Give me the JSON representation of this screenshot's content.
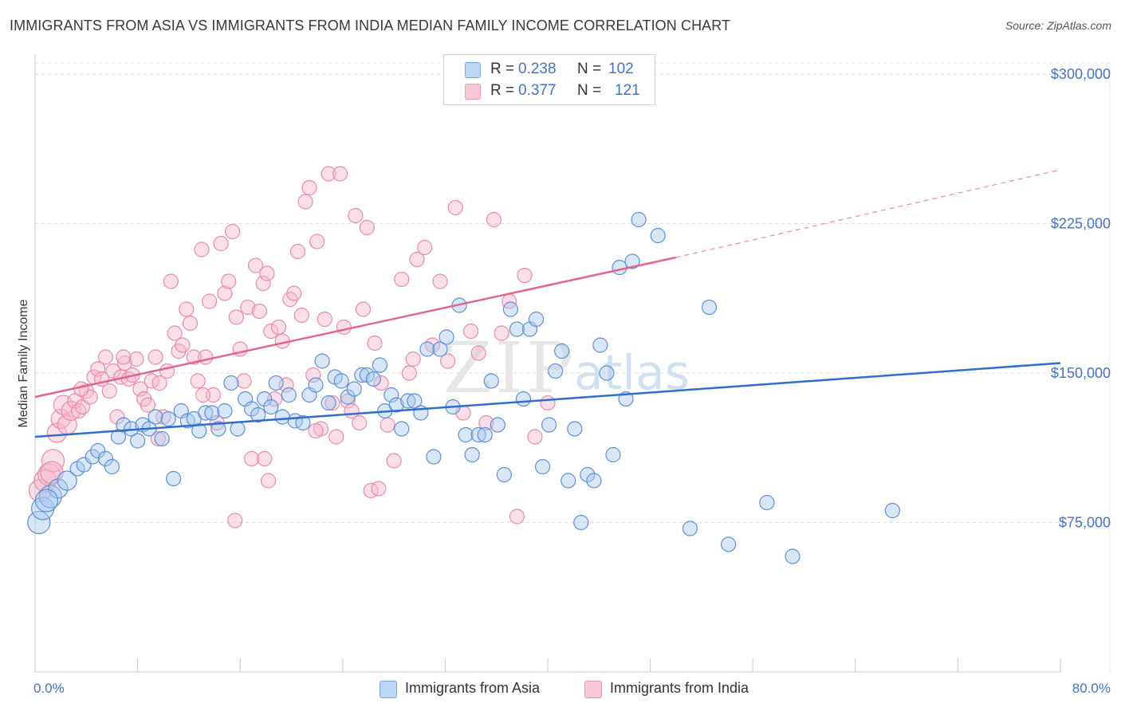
{
  "title": "IMMIGRANTS FROM ASIA VS IMMIGRANTS FROM INDIA MEDIAN FAMILY INCOME CORRELATION CHART",
  "source": "Source: ZipAtlas.com",
  "watermark": {
    "zip": "ZIP",
    "atlas": "atlas"
  },
  "legend": {
    "asia": {
      "r_label": "R =",
      "r_value": "0.238",
      "n_label": "N =",
      "n_value": "102"
    },
    "india": {
      "r_label": "R =",
      "r_value": "0.377",
      "n_label": "N =",
      "n_value": "121"
    }
  },
  "bottom_legend": {
    "asia": "Immigrants from Asia",
    "india": "Immigrants from India"
  },
  "colors": {
    "asia_fill": "#a8c8f0",
    "asia_stroke": "#5b8fd6",
    "asia_line": "#2f6fcc",
    "india_fill": "#f7b8cc",
    "india_stroke": "#e88aa8",
    "india_line": "#e0668f",
    "tick": "#4472c4",
    "grid": "#dcdcdc"
  },
  "chart_data": {
    "type": "scatter",
    "title": "IMMIGRANTS FROM ASIA VS IMMIGRANTS FROM INDIA MEDIAN FAMILY INCOME CORRELATION CHART",
    "xlabel": "",
    "ylabel": "Median Family Income",
    "xlim": [
      0,
      80
    ],
    "ylim": [
      0,
      310000
    ],
    "x_tick_labels": [
      "0.0%",
      "80.0%"
    ],
    "y_ticks": [
      75000,
      150000,
      225000,
      300000
    ],
    "y_tick_labels": [
      "$75,000",
      "$150,000",
      "$225,000",
      "$300,000"
    ],
    "series": [
      {
        "name": "Immigrants from Asia",
        "r": 0.238,
        "n": 102,
        "trend": {
          "x0": 0,
          "y0": 118000,
          "x1": 80,
          "y1": 155000
        },
        "points": [
          [
            0.3,
            75000
          ],
          [
            0.6,
            82000
          ],
          [
            1.2,
            88000
          ],
          [
            1.8,
            92000
          ],
          [
            2.5,
            96000
          ],
          [
            3.3,
            102000
          ],
          [
            3.8,
            104000
          ],
          [
            4.5,
            108000
          ],
          [
            4.9,
            111000
          ],
          [
            5.5,
            107000
          ],
          [
            6.0,
            103000
          ],
          [
            6.5,
            118000
          ],
          [
            6.9,
            124000
          ],
          [
            7.5,
            122000
          ],
          [
            8.0,
            116000
          ],
          [
            8.4,
            124000
          ],
          [
            8.9,
            122000
          ],
          [
            9.4,
            128000
          ],
          [
            9.9,
            117000
          ],
          [
            10.4,
            127000
          ],
          [
            10.8,
            97000
          ],
          [
            11.4,
            131000
          ],
          [
            11.9,
            126000
          ],
          [
            12.4,
            127000
          ],
          [
            12.8,
            121000
          ],
          [
            13.3,
            130000
          ],
          [
            13.8,
            130000
          ],
          [
            14.3,
            122000
          ],
          [
            14.8,
            131000
          ],
          [
            15.3,
            145000
          ],
          [
            15.8,
            122000
          ],
          [
            16.4,
            137000
          ],
          [
            16.9,
            132000
          ],
          [
            17.4,
            129000
          ],
          [
            17.9,
            137000
          ],
          [
            18.4,
            133000
          ],
          [
            18.8,
            145000
          ],
          [
            19.3,
            128000
          ],
          [
            19.8,
            139000
          ],
          [
            20.3,
            126000
          ],
          [
            20.9,
            125000
          ],
          [
            21.4,
            139000
          ],
          [
            21.9,
            144000
          ],
          [
            22.4,
            156000
          ],
          [
            22.9,
            135000
          ],
          [
            23.4,
            148000
          ],
          [
            23.9,
            146000
          ],
          [
            24.4,
            138000
          ],
          [
            24.9,
            142000
          ],
          [
            25.5,
            149000
          ],
          [
            25.9,
            149000
          ],
          [
            26.4,
            147000
          ],
          [
            26.9,
            154000
          ],
          [
            27.3,
            131000
          ],
          [
            27.8,
            139000
          ],
          [
            28.2,
            134000
          ],
          [
            28.6,
            122000
          ],
          [
            29.1,
            136000
          ],
          [
            29.6,
            136000
          ],
          [
            30.1,
            130000
          ],
          [
            30.6,
            162000
          ],
          [
            31.1,
            108000
          ],
          [
            31.6,
            162000
          ],
          [
            32.1,
            168000
          ],
          [
            32.6,
            133000
          ],
          [
            33.1,
            184000
          ],
          [
            33.6,
            119000
          ],
          [
            34.1,
            109000
          ],
          [
            34.6,
            119000
          ],
          [
            35.1,
            119000
          ],
          [
            35.6,
            146000
          ],
          [
            36.1,
            124000
          ],
          [
            36.6,
            99000
          ],
          [
            37.1,
            182000
          ],
          [
            37.6,
            172000
          ],
          [
            38.1,
            137000
          ],
          [
            38.6,
            172000
          ],
          [
            39.1,
            177000
          ],
          [
            39.6,
            103000
          ],
          [
            40.1,
            124000
          ],
          [
            40.6,
            151000
          ],
          [
            41.1,
            161000
          ],
          [
            41.6,
            96000
          ],
          [
            42.1,
            122000
          ],
          [
            42.6,
            75000
          ],
          [
            43.1,
            99000
          ],
          [
            43.6,
            96000
          ],
          [
            44.1,
            164000
          ],
          [
            44.6,
            150000
          ],
          [
            45.1,
            109000
          ],
          [
            45.6,
            203000
          ],
          [
            46.1,
            137000
          ],
          [
            46.6,
            206000
          ],
          [
            47.1,
            227000
          ],
          [
            48.6,
            219000
          ],
          [
            51.1,
            72000
          ],
          [
            52.6,
            183000
          ],
          [
            54.1,
            64000
          ],
          [
            57.1,
            85000
          ],
          [
            59.1,
            58000
          ],
          [
            66.9,
            81000
          ],
          [
            0.9,
            86000
          ]
        ]
      },
      {
        "name": "Immigrants from India",
        "r": 0.377,
        "n": 121,
        "trend": {
          "x0": 0,
          "y0": 138000,
          "x1": 50,
          "y1": 208000,
          "dash_to_x": 80,
          "dash_to_y": 252000
        },
        "points": [
          [
            0.4,
            91000
          ],
          [
            0.8,
            96000
          ],
          [
            1.1,
            99000
          ],
          [
            1.4,
            106000
          ],
          [
            1.7,
            120000
          ],
          [
            2.0,
            127000
          ],
          [
            2.2,
            134000
          ],
          [
            2.5,
            124000
          ],
          [
            2.8,
            131000
          ],
          [
            3.1,
            136000
          ],
          [
            3.4,
            131000
          ],
          [
            3.7,
            133000
          ],
          [
            4.0,
            141000
          ],
          [
            4.3,
            138000
          ],
          [
            4.6,
            148000
          ],
          [
            4.9,
            152000
          ],
          [
            5.2,
            147000
          ],
          [
            5.5,
            158000
          ],
          [
            5.8,
            141000
          ],
          [
            6.1,
            151000
          ],
          [
            6.4,
            128000
          ],
          [
            6.7,
            148000
          ],
          [
            7.0,
            155000
          ],
          [
            7.3,
            147000
          ],
          [
            7.6,
            149000
          ],
          [
            7.9,
            157000
          ],
          [
            8.2,
            142000
          ],
          [
            8.5,
            137000
          ],
          [
            8.8,
            134000
          ],
          [
            9.1,
            146000
          ],
          [
            9.4,
            158000
          ],
          [
            9.7,
            145000
          ],
          [
            10.0,
            128000
          ],
          [
            10.3,
            151000
          ],
          [
            10.6,
            196000
          ],
          [
            10.9,
            170000
          ],
          [
            11.2,
            161000
          ],
          [
            11.5,
            164000
          ],
          [
            11.8,
            182000
          ],
          [
            12.1,
            175000
          ],
          [
            12.4,
            158000
          ],
          [
            12.7,
            146000
          ],
          [
            13.0,
            212000
          ],
          [
            13.3,
            158000
          ],
          [
            13.6,
            186000
          ],
          [
            13.9,
            139000
          ],
          [
            14.2,
            125000
          ],
          [
            14.5,
            215000
          ],
          [
            14.8,
            190000
          ],
          [
            15.1,
            196000
          ],
          [
            15.4,
            221000
          ],
          [
            15.7,
            178000
          ],
          [
            16.0,
            162000
          ],
          [
            16.3,
            146000
          ],
          [
            16.6,
            183000
          ],
          [
            16.9,
            107000
          ],
          [
            17.2,
            204000
          ],
          [
            17.5,
            181000
          ],
          [
            17.8,
            195000
          ],
          [
            18.1,
            200000
          ],
          [
            18.4,
            171000
          ],
          [
            18.7,
            137000
          ],
          [
            19.0,
            173000
          ],
          [
            19.3,
            166000
          ],
          [
            19.6,
            144000
          ],
          [
            19.9,
            187000
          ],
          [
            20.2,
            190000
          ],
          [
            20.5,
            211000
          ],
          [
            20.8,
            179000
          ],
          [
            21.1,
            236000
          ],
          [
            21.4,
            243000
          ],
          [
            21.7,
            149000
          ],
          [
            22.0,
            216000
          ],
          [
            22.3,
            122000
          ],
          [
            22.6,
            177000
          ],
          [
            22.9,
            250000
          ],
          [
            23.2,
            135000
          ],
          [
            23.5,
            118000
          ],
          [
            23.8,
            250000
          ],
          [
            24.1,
            173000
          ],
          [
            24.4,
            136000
          ],
          [
            24.7,
            131000
          ],
          [
            25.0,
            229000
          ],
          [
            25.3,
            125000
          ],
          [
            25.6,
            182000
          ],
          [
            25.9,
            223000
          ],
          [
            26.2,
            91000
          ],
          [
            26.5,
            165000
          ],
          [
            27.0,
            145000
          ],
          [
            27.5,
            124000
          ],
          [
            28.0,
            106000
          ],
          [
            28.6,
            197000
          ],
          [
            29.2,
            150000
          ],
          [
            29.8,
            207000
          ],
          [
            30.4,
            213000
          ],
          [
            31.0,
            164000
          ],
          [
            31.6,
            196000
          ],
          [
            32.2,
            156000
          ],
          [
            32.8,
            233000
          ],
          [
            33.4,
            130000
          ],
          [
            34.0,
            171000
          ],
          [
            34.6,
            160000
          ],
          [
            35.2,
            125000
          ],
          [
            35.8,
            227000
          ],
          [
            36.4,
            170000
          ],
          [
            37.0,
            186000
          ],
          [
            37.6,
            78000
          ],
          [
            38.2,
            199000
          ],
          [
            39.0,
            118000
          ],
          [
            40.0,
            135000
          ],
          [
            17.9,
            107000
          ],
          [
            15.6,
            76000
          ],
          [
            18.2,
            96000
          ],
          [
            21.9,
            121000
          ],
          [
            26.8,
            92000
          ],
          [
            29.5,
            157000
          ],
          [
            13.1,
            139000
          ],
          [
            9.6,
            117000
          ],
          [
            6.9,
            158000
          ],
          [
            3.6,
            142000
          ],
          [
            1.3,
            100000
          ]
        ]
      }
    ]
  }
}
